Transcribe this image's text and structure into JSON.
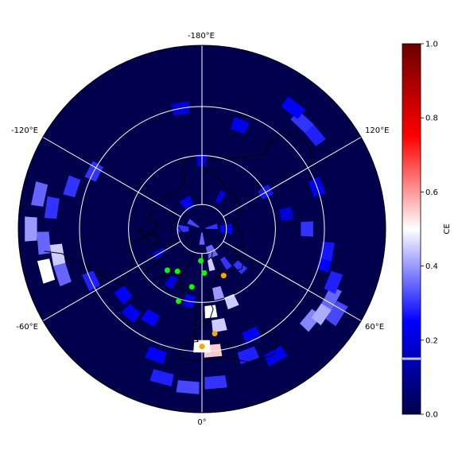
{
  "map": {
    "projection": "north-polar-stereographic",
    "longitude_labels": [
      "-180°E",
      "120°E",
      "60°E",
      "0°",
      "-60°E",
      "-120°E"
    ],
    "background_color": "#00004d",
    "gridline_color": "#ffffff",
    "coastline_color": "#000000",
    "cells": [
      {
        "lon": 5,
        "lat": 40,
        "ce": 0.55
      },
      {
        "lon": 0,
        "lat": 42,
        "ce": 0.5
      },
      {
        "lon": 10,
        "lat": 50,
        "ce": 0.45
      },
      {
        "lon": 14,
        "lat": 63,
        "ce": 0.4
      },
      {
        "lon": 22,
        "lat": 58,
        "ce": 0.45
      },
      {
        "lon": 6,
        "lat": 56,
        "ce": 0.5
      },
      {
        "lon": 14,
        "lat": 75,
        "ce": 0.45
      },
      {
        "lon": 22,
        "lat": 80,
        "ce": 0.35
      },
      {
        "lon": 35,
        "lat": 73,
        "ce": 0.3
      },
      {
        "lon": 45,
        "lat": 68,
        "ce": 0.3
      },
      {
        "lon": 50,
        "lat": 32,
        "ce": 0.38
      },
      {
        "lon": 55,
        "lat": 30,
        "ce": 0.42
      },
      {
        "lon": 62,
        "lat": 30,
        "ce": 0.35
      },
      {
        "lon": 68,
        "lat": 32,
        "ce": 0.28
      },
      {
        "lon": 58,
        "lat": 25,
        "ce": 0.32
      },
      {
        "lon": 75,
        "lat": 38,
        "ce": 0.25
      },
      {
        "lon": 80,
        "lat": 38,
        "ce": 0.27
      },
      {
        "lon": 90,
        "lat": 47,
        "ce": 0.3
      },
      {
        "lon": 120,
        "lat": 60,
        "ce": 0.27
      },
      {
        "lon": 130,
        "lat": 30,
        "ce": 0.28
      },
      {
        "lon": 137,
        "lat": 30,
        "ce": 0.3
      },
      {
        "lon": 143,
        "lat": 28,
        "ce": 0.25
      },
      {
        "lon": 180,
        "lat": 62,
        "ce": 0.2
      },
      {
        "lon": -90,
        "lat": 20,
        "ce": 0.4
      },
      {
        "lon": -85,
        "lat": 25,
        "ce": 0.35
      },
      {
        "lon": -80,
        "lat": 30,
        "ce": 0.45
      },
      {
        "lon": -75,
        "lat": 24,
        "ce": 0.5
      },
      {
        "lon": -72,
        "lat": 30,
        "ce": 0.35
      },
      {
        "lon": -98,
        "lat": 28,
        "ce": 0.3
      },
      {
        "lon": -102,
        "lat": 22,
        "ce": 0.35
      },
      {
        "lon": -108,
        "lat": 34,
        "ce": 0.3
      },
      {
        "lon": -118,
        "lat": 40,
        "ce": 0.3
      },
      {
        "lon": -65,
        "lat": 40,
        "ce": 0.28
      },
      {
        "lon": -50,
        "lat": 48,
        "ce": 0.25
      },
      {
        "lon": -30,
        "lat": 48,
        "ce": 0.25
      },
      {
        "lon": -40,
        "lat": 45,
        "ce": 0.22
      },
      {
        "lon": -20,
        "lat": 35,
        "ce": 0.25
      },
      {
        "lon": -15,
        "lat": 27,
        "ce": 0.28
      },
      {
        "lon": -5,
        "lat": 25,
        "ce": 0.32
      },
      {
        "lon": 5,
        "lat": 27,
        "ce": 0.3
      },
      {
        "lon": 20,
        "lat": 35,
        "ce": 0.28
      },
      {
        "lon": 25,
        "lat": 42,
        "ce": 0.24
      },
      {
        "lon": 30,
        "lat": 30,
        "ce": 0.22
      },
      {
        "lon": -10,
        "lat": 60,
        "ce": 0.22
      },
      {
        "lon": -30,
        "lat": 65,
        "ce": 0.2
      },
      {
        "lon": -60,
        "lat": 70,
        "ce": 0.2
      },
      {
        "lon": 150,
        "lat": 75,
        "ce": 0.22
      },
      {
        "lon": -150,
        "lat": 78,
        "ce": 0.22
      },
      {
        "lon": 90,
        "lat": 80,
        "ce": 0.25
      },
      {
        "lon": -90,
        "lat": 82,
        "ce": 0.3
      },
      {
        "lon": 0,
        "lat": 86,
        "ce": 0.35
      },
      {
        "lon": 100,
        "lat": 86,
        "ce": 0.3
      },
      {
        "lon": -120,
        "lat": 86,
        "ce": 0.32
      },
      {
        "lon": 160,
        "lat": 45,
        "ce": 0.22
      },
      {
        "lon": -170,
        "lat": 40,
        "ce": 0.2
      },
      {
        "lon": 110,
        "lat": 40,
        "ce": 0.22
      },
      {
        "lon": 100,
        "lat": 55,
        "ce": 0.2
      }
    ],
    "markers": [
      {
        "lon": -40,
        "lat": 68,
        "color": "#00ff00"
      },
      {
        "lon": -30,
        "lat": 70,
        "color": "#00ff00"
      },
      {
        "lon": -10,
        "lat": 66,
        "color": "#00ff00"
      },
      {
        "lon": 3,
        "lat": 72,
        "color": "#00ff00"
      },
      {
        "lon": -2,
        "lat": 77,
        "color": "#00ff00"
      },
      {
        "lon": -18,
        "lat": 59,
        "color": "#00ff00"
      },
      {
        "lon": 25,
        "lat": 69,
        "color": "#ffa500"
      },
      {
        "lon": 7,
        "lat": 47,
        "color": "#ffa500"
      },
      {
        "lon": 0,
        "lat": 42,
        "color": "#ffa500"
      }
    ]
  },
  "colorbar": {
    "label": "CE",
    "ticks": [
      "1.0",
      "0.8",
      "0.6",
      "0.4",
      "0.2",
      "0.0"
    ],
    "highlight_value": 0.15,
    "gradient_stops": [
      {
        "offset": "0%",
        "color": "#6b0000"
      },
      {
        "offset": "25%",
        "color": "#ff0000"
      },
      {
        "offset": "50%",
        "color": "#ffffff"
      },
      {
        "offset": "75%",
        "color": "#0000ff"
      },
      {
        "offset": "100%",
        "color": "#00004d"
      }
    ]
  }
}
